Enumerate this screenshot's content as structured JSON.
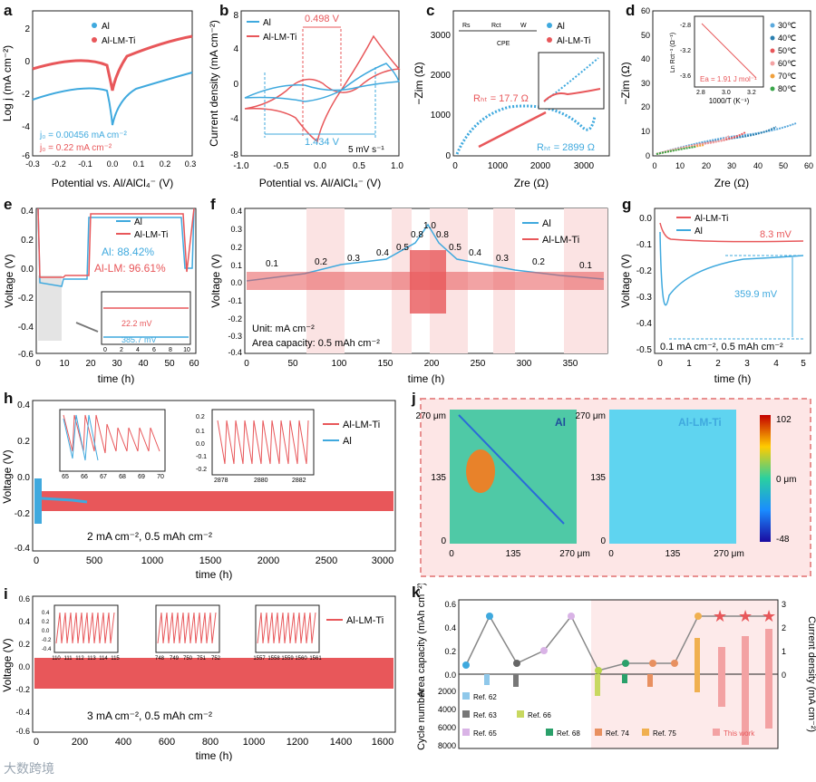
{
  "panels": {
    "a": {
      "label": "a",
      "xlabel": "Potential vs. Al/AlCl₄⁻ (V)",
      "ylabel": "Log j (mA cm⁻²)",
      "xticks": [
        "-0.3",
        "-0.2",
        "-0.1",
        "0.0",
        "0.1",
        "0.2",
        "0.3"
      ],
      "yticks": [
        "2",
        "0",
        "-2",
        "-4",
        "-6"
      ],
      "legend": [
        "Al",
        "Al-LM-Ti"
      ],
      "annot1": "j₀ = 0.00456 mA cm⁻²",
      "annot2": "j₀ = 0.22 mA cm⁻²"
    },
    "b": {
      "label": "b",
      "xlabel": "Potential vs. Al/AlCl₄⁻ (V)",
      "ylabel": "Current density (mA cm⁻²)",
      "xticks": [
        "-1.0",
        "-0.5",
        "0.0",
        "0.5",
        "1.0"
      ],
      "yticks": [
        "8",
        "4",
        "0",
        "-4",
        "-8"
      ],
      "legend": [
        "Al",
        "Al-LM-Ti"
      ],
      "annot_top": "0.498 V",
      "annot_bot": "1.434 V",
      "annot_rate": "5 mV s⁻¹"
    },
    "c": {
      "label": "c",
      "xlabel": "Zre (Ω)",
      "ylabel": "−Zim (Ω)",
      "xticks": [
        "0",
        "1000",
        "2000",
        "3000"
      ],
      "yticks": [
        "3000",
        "2000",
        "1000",
        "0"
      ],
      "legend": [
        "Al",
        "Al-LM-Ti"
      ],
      "rct_red": "Rₕₜ = 17.7 Ω",
      "rct_blue": "Rₕₜ = 2899 Ω",
      "circuit": [
        "Rs",
        "Rct",
        "W",
        "CPE"
      ]
    },
    "d": {
      "label": "d",
      "xlabel": "Zre (Ω)",
      "ylabel": "−Zim (Ω)",
      "xticks": [
        "0",
        "10",
        "20",
        "30",
        "40",
        "50",
        "60"
      ],
      "yticks": [
        "60",
        "50",
        "40",
        "30",
        "20",
        "10",
        "0"
      ],
      "legend": [
        "30℃",
        "40℃",
        "50℃",
        "60℃",
        "70℃",
        "80℃"
      ],
      "inset_xlabel": "1000/T (K⁻¹)",
      "inset_ylabel": "Ln Rct⁻¹ (Ω⁻¹)",
      "inset_ea": "Ea = 1.91 J mol⁻¹",
      "inset_xticks": [
        "2.8",
        "3.0",
        "3.2"
      ],
      "inset_yticks": [
        "-2.8",
        "-3.2",
        "-3.6"
      ]
    },
    "e": {
      "label": "e",
      "xlabel": "time (h)",
      "ylabel": "Voltage (V)",
      "xticks": [
        "0",
        "10",
        "20",
        "30",
        "40",
        "50",
        "60"
      ],
      "yticks": [
        "0.4",
        "0.2",
        "0.0",
        "-0.2",
        "-0.4",
        "-0.6"
      ],
      "legend": [
        "Al",
        "Al-LM-Ti"
      ],
      "eff_al": "Al: 88.42%",
      "eff_lm": "Al-LM: 96.61%",
      "inset_v1": "22.2 mV",
      "inset_v2": "385.7 mV",
      "inset_xticks": [
        "0",
        "2",
        "4",
        "6",
        "8",
        "10"
      ]
    },
    "f": {
      "label": "f",
      "xlabel": "time (h)",
      "ylabel": "Voltage (V)",
      "xticks": [
        "0",
        "50",
        "100",
        "150",
        "200",
        "250",
        "300",
        "350"
      ],
      "yticks": [
        "0.4",
        "0.3",
        "0.2",
        "0.1",
        "0.0",
        "-0.1",
        "-0.2",
        "-0.3",
        "-0.4"
      ],
      "legend": [
        "Al",
        "Al-LM-Ti"
      ],
      "rates": [
        "0.1",
        "0.2",
        "0.3",
        "0.4",
        "0.5",
        "0.8",
        "1.0",
        "0.8",
        "0.5",
        "0.4",
        "0.3",
        "0.2",
        "0.1"
      ],
      "unit": "Unit: mA cm⁻²",
      "cap": "Area capacity: 0.5 mAh cm⁻²"
    },
    "g": {
      "label": "g",
      "xlabel": "time (h)",
      "ylabel": "Voltage (V)",
      "xticks": [
        "0",
        "1",
        "2",
        "3",
        "4",
        "5"
      ],
      "yticks": [
        "0.0",
        "-0.1",
        "-0.2",
        "-0.3",
        "-0.4",
        "-0.5"
      ],
      "legend": [
        "Al-LM-Ti",
        "Al"
      ],
      "v1": "8.3 mV",
      "v2": "359.9 mV",
      "cond": "0.1 mA cm⁻², 0.5 mAh cm⁻²"
    },
    "h": {
      "label": "h",
      "xlabel": "time (h)",
      "ylabel": "Voltage (V)",
      "xticks": [
        "0",
        "500",
        "1000",
        "1500",
        "2000",
        "2500",
        "3000"
      ],
      "yticks": [
        "0.4",
        "0.2",
        "0.0",
        "-0.2",
        "-0.4"
      ],
      "legend": [
        "Al-LM-Ti",
        "Al"
      ],
      "cond": "2 mA cm⁻², 0.5 mAh cm⁻²",
      "inset1_xticks": [
        "65",
        "66",
        "67",
        "68",
        "69",
        "70"
      ],
      "inset2_xticks": [
        "2878",
        "2880",
        "2882"
      ],
      "inset_yticks": [
        "0.2",
        "0.1",
        "0.0",
        "-0.1",
        "-0.2"
      ]
    },
    "i": {
      "label": "i",
      "xlabel": "time (h)",
      "ylabel": "Voltage (V)",
      "xticks": [
        "0",
        "200",
        "400",
        "600",
        "800",
        "1000",
        "1200",
        "1400",
        "1600"
      ],
      "yticks": [
        "0.6",
        "0.4",
        "0.2",
        "0.0",
        "-0.2",
        "-0.4",
        "-0.6"
      ],
      "legend": [
        "Al-LM-Ti"
      ],
      "cond": "3 mA cm⁻², 0.5 mAh cm⁻²",
      "inset1_xticks": [
        "110",
        "111",
        "112",
        "113",
        "114",
        "115"
      ],
      "inset2_xticks": [
        "748",
        "749",
        "750",
        "751",
        "752"
      ],
      "inset3_xticks": [
        "1557",
        "1558",
        "1559",
        "1560",
        "1561"
      ],
      "inset_yticks": [
        "0.4",
        "0.2",
        "0.0",
        "-0.2",
        "-0.4"
      ]
    },
    "j": {
      "label": "j",
      "title_al": "Al",
      "title_lm": "Al-LM-Ti",
      "yticks": [
        "270\nμm",
        "135",
        "0"
      ],
      "xticks": [
        "0",
        "135",
        "270 μm"
      ],
      "cbar": [
        "102",
        "0 μm",
        "-48"
      ]
    },
    "k": {
      "label": "k",
      "ylabel_left_top": "Area capacity (mAh cm⁻²)",
      "ylabel_left_bot": "Cycle number",
      "ylabel_right": "Current density (mA cm⁻²)",
      "yticks_top": [
        "0.6",
        "0.4",
        "0.2",
        "0.0"
      ],
      "yticks_bot": [
        "2000",
        "4000",
        "6000",
        "8000"
      ],
      "yticks_right": [
        "3",
        "2",
        "1",
        "0"
      ],
      "refs": [
        "Ref. 62",
        "Ref. 63",
        "Ref. 65",
        "Ref. 66",
        "Ref. 68",
        "Ref. 74",
        "Ref. 75",
        "This work"
      ]
    }
  },
  "watermark": "大数跨境",
  "chart_data": [
    {
      "panel": "a",
      "type": "line",
      "series": [
        {
          "name": "Al",
          "color": "#3fa9de"
        },
        {
          "name": "Al-LM-Ti",
          "color": "#e8575a"
        }
      ],
      "xlim": [
        -0.3,
        0.3
      ],
      "ylim": [
        -6,
        2
      ]
    },
    {
      "panel": "b",
      "type": "line",
      "series": [
        {
          "name": "Al"
        },
        {
          "name": "Al-LM-Ti"
        }
      ],
      "xlim": [
        -1,
        1
      ],
      "ylim": [
        -8,
        8
      ]
    },
    {
      "panel": "c",
      "type": "scatter",
      "series": [
        {
          "name": "Al",
          "R_ct": 2899
        },
        {
          "name": "Al-LM-Ti",
          "R_ct": 17.7
        }
      ],
      "xlim": [
        0,
        3500
      ],
      "ylim": [
        0,
        3500
      ]
    },
    {
      "panel": "d",
      "type": "scatter",
      "inset": {
        "x": [
          2.8,
          3.0,
          3.2
        ],
        "Ea": "1.91 J mol-1"
      }
    },
    {
      "panel": "e",
      "type": "line",
      "efficiency": {
        "Al": 88.42,
        "Al-LM": 96.61
      }
    },
    {
      "panel": "f",
      "type": "line",
      "rates": [
        0.1,
        0.2,
        0.3,
        0.4,
        0.5,
        0.8,
        1.0,
        0.8,
        0.5,
        0.4,
        0.3,
        0.2,
        0.1
      ]
    },
    {
      "panel": "g",
      "type": "line",
      "overpotential_mV": {
        "Al-LM-Ti": 8.3,
        "Al": 359.9
      }
    },
    {
      "panel": "h",
      "type": "line",
      "xlim": [
        0,
        3000
      ],
      "ylim": [
        -0.4,
        0.4
      ]
    },
    {
      "panel": "i",
      "type": "line",
      "xlim": [
        0,
        1650
      ],
      "ylim": [
        -0.6,
        0.6
      ]
    },
    {
      "panel": "k",
      "type": "bar",
      "refs": [
        "Ref. 62",
        "Ref. 63",
        "Ref. 65",
        "Ref. 66",
        "Ref. 68",
        "Ref. 74",
        "Ref. 75",
        "This work"
      ]
    }
  ]
}
